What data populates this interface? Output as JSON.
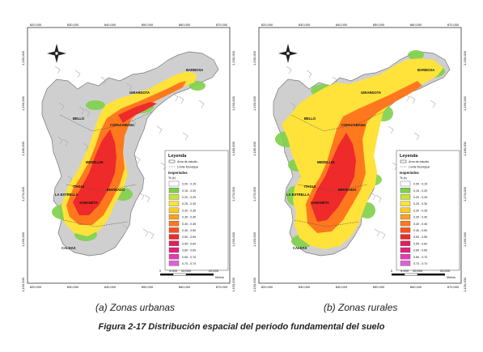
{
  "panels": [
    {
      "id": "a",
      "caption": "(a)  Zonas urbanas",
      "places": [
        "BARBOSA",
        "GIRARDOTA",
        "BELLO",
        "COPACABANA",
        "MEDELLIN",
        "ENVIGADO",
        "ITAGUI",
        "LA ESTRELLA",
        "SABANETA",
        "CALDAS"
      ],
      "x_ticks": [
        "820,000",
        "830,000",
        "840,000",
        "850,000",
        "860,000",
        "870,000"
      ],
      "y_ticks": [
        "1,200,000",
        "1,190,000",
        "1,180,000",
        "1,170,000",
        "1,160,000",
        "1,150,000"
      ],
      "legend": {
        "title": "Leyenda",
        "study_area": "Área de estudio",
        "municipal_limit": "Límite Municipal",
        "subtitle": "Isoperiodos",
        "unit": "Ts (s)",
        "classes": [
          "0.00 - 0.15",
          "0.15 - 0.20",
          "0.20 - 0.25",
          "0.25 - 0.30",
          "0.30 - 0.35",
          "0.35 - 0.40",
          "0.40 - 0.45",
          "0.45 - 0.50",
          "0.50 - 0.55",
          "0.55 - 0.60",
          "0.60 - 0.65",
          "0.65 - 0.70",
          "0.70 - 0.74"
        ]
      },
      "scale": {
        "labels": [
          "0",
          "5,000",
          "10,000",
          "20,000"
        ],
        "unit": "Metros"
      }
    },
    {
      "id": "b",
      "caption": "(b)  Zonas rurales",
      "places": [
        "BARBOSA",
        "GIRARDOTA",
        "BELLO",
        "COPACABANA",
        "MEDELLIN",
        "ENVIGADO",
        "ITAGUI",
        "LA ESTRELLA",
        "SABANETA",
        "CALDAS"
      ],
      "x_ticks": [
        "820,000",
        "830,000",
        "840,000",
        "850,000",
        "860,000",
        "870,000"
      ],
      "y_ticks": [
        "1,200,000",
        "1,190,000",
        "1,180,000",
        "1,170,000",
        "1,160,000",
        "1,150,000"
      ],
      "legend": {
        "title": "Leyenda",
        "study_area": "Área de estudio",
        "municipal_limit": "Límite Municipal",
        "subtitle": "Isoperiodos",
        "unit": "Ts (s)",
        "classes": [
          "0.00 - 0.15",
          "0.15 - 0.20",
          "0.20 - 0.25",
          "0.25 - 0.30",
          "0.30 - 0.35",
          "0.35 - 0.40",
          "0.40 - 0.45",
          "0.45 - 0.50",
          "0.50 - 0.55",
          "0.55 - 0.60",
          "0.60 - 0.65",
          "0.65 - 0.70",
          "0.70 - 0.74"
        ]
      },
      "scale": {
        "labels": [
          "0",
          "5,000",
          "10,000",
          "20,000"
        ],
        "unit": "Metros"
      }
    }
  ],
  "legend_colors": [
    "#ffffff",
    "#7ed04a",
    "#c8e23a",
    "#ffe23a",
    "#ffcc22",
    "#ffa01e",
    "#ff781e",
    "#ff4e1e",
    "#ee2a2a",
    "#e0205a",
    "#e6207e",
    "#e838b4",
    "#e060d8"
  ],
  "figure_caption": "Figura 2-17 Distribución espacial del periodo fundamental del suelo"
}
